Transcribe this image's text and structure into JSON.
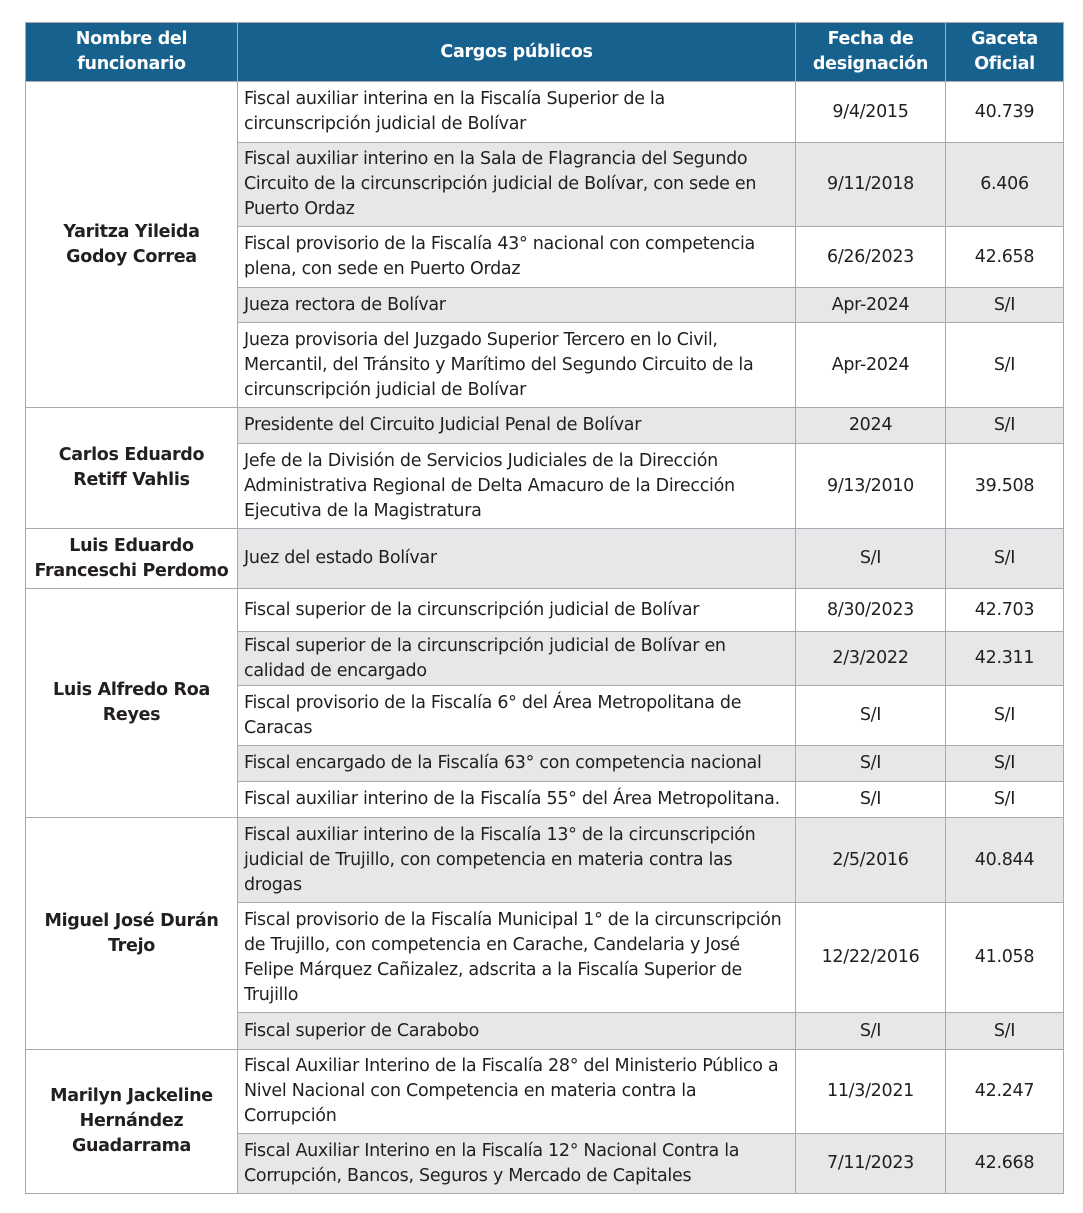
{
  "headers": [
    "Nombre del funcionario",
    "Cargos públicos",
    "Fecha de designación",
    "Gaceta Oficial"
  ],
  "colors": {
    "header_bg": "#17618e",
    "stripe": "#e6e7e8"
  },
  "groups": [
    {
      "name": "Yaritza Yileida Godoy Correa",
      "rows": [
        {
          "cargo": "Fiscal auxiliar interina en la Fiscalía Superior de la circunscripción judicial de Bolívar",
          "fecha": "9/4/2015",
          "gaceta": "40.739"
        },
        {
          "cargo": "Fiscal auxiliar interino en la Sala de Flagrancia del Segundo Circuito de la circunscripción judicial de Bolívar, con sede en Puerto Ordaz",
          "fecha": "9/11/2018",
          "gaceta": "6.406"
        },
        {
          "cargo": "Fiscal provisorio de la Fiscalía 43° nacional con competencia plena, con sede en Puerto Ordaz",
          "fecha": "6/26/2023",
          "gaceta": "42.658"
        },
        {
          "cargo": "Jueza rectora de Bolívar",
          "fecha": "Apr-2024",
          "gaceta": "S/I"
        },
        {
          "cargo": "Jueza provisoria del Juzgado Superior Tercero en lo Civil, Mercantil, del Tránsito y Marítimo del Segundo Circuito de la circunscripción judicial de Bolívar",
          "fecha": "Apr-2024",
          "gaceta": "S/I"
        }
      ]
    },
    {
      "name": "Carlos Eduardo Retiff Vahlis",
      "rows": [
        {
          "cargo": "Presidente del Circuito Judicial Penal de Bolívar",
          "fecha": "2024",
          "gaceta": "S/I"
        },
        {
          "cargo": "Jefe de la División de Servicios Judiciales de la Dirección Administrativa Regional de Delta Amacuro de la Dirección Ejecutiva de la Magistratura",
          "fecha": "9/13/2010",
          "gaceta": "39.508"
        }
      ]
    },
    {
      "name": "Luis Eduardo Franceschi Perdomo",
      "rows": [
        {
          "cargo": "Juez del estado Bolívar",
          "fecha": "S/I",
          "gaceta": "S/I"
        }
      ]
    },
    {
      "name": "Luis Alfredo Roa Reyes",
      "rows": [
        {
          "cargo": "Fiscal superior de la circunscripción judicial de Bolívar",
          "fecha": "8/30/2023",
          "gaceta": "42.703"
        },
        {
          "cargo": "Fiscal superior de la circunscripción judicial de Bolívar en calidad de encargado",
          "fecha": "2/3/2022",
          "gaceta": "42.311"
        },
        {
          "cargo": "Fiscal provisorio de la Fiscalía 6° del Área Metropolitana de Caracas",
          "fecha": "S/I",
          "gaceta": "S/I"
        },
        {
          "cargo": "Fiscal encargado de la Fiscalía 63° con competencia nacional",
          "fecha": "S/I",
          "gaceta": "S/I"
        },
        {
          "cargo": "Fiscal auxiliar interino de la Fiscalía 55° del Área Metropolitana.",
          "fecha": "S/I",
          "gaceta": "S/I"
        }
      ]
    },
    {
      "name": "Miguel José Durán Trejo",
      "rows": [
        {
          "cargo": "Fiscal auxiliar interino de la Fiscalía 13° de la circunscripción judicial de Trujillo, con competencia en materia contra las drogas",
          "fecha": "2/5/2016",
          "gaceta": "40.844"
        },
        {
          "cargo": "Fiscal provisorio de la Fiscalía Municipal 1° de la circunscripción de Trujillo, con competencia en Carache, Candelaria  y José Felipe Márquez Cañizalez, adscrita a la Fiscalía Superior de Trujillo",
          "fecha": "12/22/2016",
          "gaceta": "41.058"
        },
        {
          "cargo": "Fiscal superior de Carabobo",
          "fecha": "S/I",
          "gaceta": "S/I"
        }
      ]
    },
    {
      "name": "Marilyn Jackeline Hernández Guadarrama",
      "rows": [
        {
          "cargo": "Fiscal Auxiliar Interino de la Fiscalía 28° del Ministerio Público a Nivel Nacional con Competencia en materia contra la Corrupción",
          "fecha": "11/3/2021",
          "gaceta": "42.247"
        },
        {
          "cargo": "Fiscal Auxiliar Interino en la Fiscalía 12° Nacional Contra la Corrupción, Bancos, Seguros y Mercado de Capitales",
          "fecha": "7/11/2023",
          "gaceta": "42.668"
        }
      ]
    }
  ]
}
